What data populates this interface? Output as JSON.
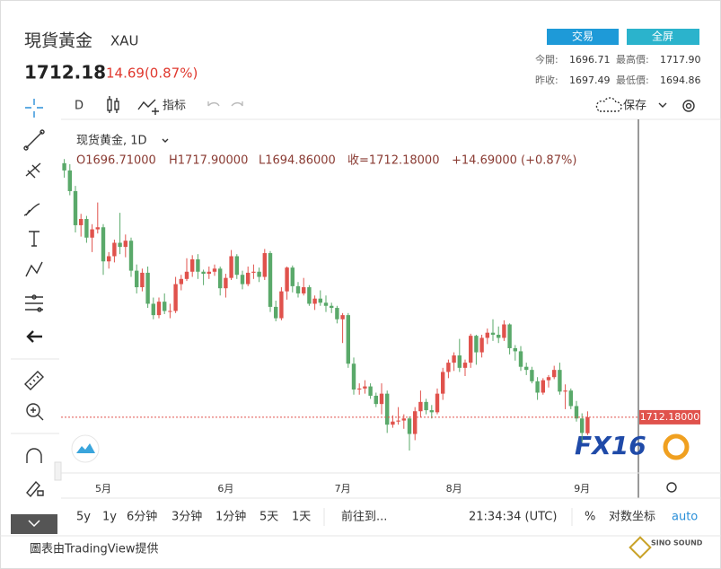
{
  "header": {
    "title": "現貨黃金",
    "symbol": "XAU",
    "price": "1712.18",
    "change": "14.69(0.87%)",
    "buttons": [
      "交易",
      "全屏"
    ],
    "stats": [
      {
        "label": "今開:",
        "value": "1696.71"
      },
      {
        "label": "最高價:",
        "value": "1717.90"
      },
      {
        "label": "昨收:",
        "value": "1697.49"
      },
      {
        "label": "最低價:",
        "value": "1694.86"
      }
    ]
  },
  "toolbar": {
    "interval": "D",
    "indicators": "指标",
    "save": "保存"
  },
  "legend": {
    "name": "现货黄金, 1D",
    "open": "O1696.71000",
    "high": "H1717.90000",
    "low": "L1694.86000",
    "close": "收=1712.18000",
    "change": "+14.69000 (+0.87%)"
  },
  "chart_data": {
    "type": "candlestick",
    "up_color": "#e0524c",
    "down_color": "#5aa96a",
    "ylim": [
      1660,
      1990
    ],
    "last_price_label": "1712.18000",
    "categories": [
      null,
      null,
      null,
      null,
      null,
      null,
      null,
      "5月",
      null,
      null,
      null,
      null,
      null,
      null,
      null,
      null,
      null,
      null,
      null,
      null,
      null,
      null,
      null,
      null,
      null,
      null,
      null,
      null,
      null,
      "6月",
      null,
      null,
      null,
      null,
      null,
      null,
      null,
      null,
      null,
      null,
      null,
      null,
      null,
      null,
      null,
      null,
      null,
      null,
      null,
      null,
      "7月",
      null,
      null,
      null,
      null,
      null,
      null,
      null,
      null,
      null,
      null,
      null,
      null,
      null,
      null,
      null,
      null,
      null,
      null,
      null,
      "8月",
      null,
      null,
      null,
      null,
      null,
      null,
      null,
      null,
      null,
      null,
      null,
      null,
      null,
      null,
      null,
      null,
      null,
      null,
      null,
      null,
      null,
      null,
      "9月",
      null
    ],
    "candles": [
      [
        1958,
        1962,
        1944,
        1951
      ],
      [
        1951,
        1957,
        1927,
        1931
      ],
      [
        1931,
        1936,
        1891,
        1898
      ],
      [
        1898,
        1909,
        1887,
        1904
      ],
      [
        1904,
        1907,
        1881,
        1886
      ],
      [
        1886,
        1899,
        1872,
        1894
      ],
      [
        1894,
        1920,
        1890,
        1896
      ],
      [
        1896,
        1899,
        1850,
        1863
      ],
      [
        1863,
        1872,
        1856,
        1868
      ],
      [
        1868,
        1884,
        1862,
        1881
      ],
      [
        1881,
        1910,
        1870,
        1877
      ],
      [
        1877,
        1889,
        1867,
        1883
      ],
      [
        1883,
        1886,
        1848,
        1854
      ],
      [
        1854,
        1860,
        1832,
        1838
      ],
      [
        1838,
        1856,
        1834,
        1852
      ],
      [
        1852,
        1858,
        1818,
        1822
      ],
      [
        1822,
        1828,
        1807,
        1811
      ],
      [
        1811,
        1828,
        1808,
        1824
      ],
      [
        1824,
        1832,
        1812,
        1815
      ],
      [
        1815,
        1822,
        1808,
        1815
      ],
      [
        1815,
        1848,
        1813,
        1841
      ],
      [
        1841,
        1850,
        1835,
        1846
      ],
      [
        1846,
        1866,
        1844,
        1853
      ],
      [
        1853,
        1869,
        1848,
        1865
      ],
      [
        1865,
        1870,
        1846,
        1853
      ],
      [
        1853,
        1855,
        1840,
        1851
      ],
      [
        1851,
        1858,
        1846,
        1853
      ],
      [
        1853,
        1860,
        1849,
        1856
      ],
      [
        1856,
        1858,
        1830,
        1837
      ],
      [
        1837,
        1851,
        1828,
        1847
      ],
      [
        1847,
        1874,
        1845,
        1868
      ],
      [
        1868,
        1870,
        1846,
        1850
      ],
      [
        1850,
        1854,
        1836,
        1841
      ],
      [
        1841,
        1858,
        1839,
        1852
      ],
      [
        1852,
        1860,
        1846,
        1853
      ],
      [
        1853,
        1857,
        1843,
        1848
      ],
      [
        1848,
        1875,
        1845,
        1871
      ],
      [
        1871,
        1873,
        1814,
        1819
      ],
      [
        1819,
        1825,
        1805,
        1808
      ],
      [
        1808,
        1838,
        1806,
        1834
      ],
      [
        1834,
        1858,
        1826,
        1857
      ],
      [
        1857,
        1859,
        1833,
        1839
      ],
      [
        1839,
        1843,
        1828,
        1832
      ],
      [
        1832,
        1847,
        1830,
        1838
      ],
      [
        1838,
        1840,
        1820,
        1822
      ],
      [
        1822,
        1830,
        1816,
        1827
      ],
      [
        1827,
        1835,
        1820,
        1823
      ],
      [
        1823,
        1830,
        1814,
        1820
      ],
      [
        1820,
        1823,
        1813,
        1818
      ],
      [
        1818,
        1820,
        1803,
        1807
      ],
      [
        1807,
        1813,
        1784,
        1811
      ],
      [
        1811,
        1813,
        1760,
        1764
      ],
      [
        1764,
        1770,
        1734,
        1739
      ],
      [
        1739,
        1745,
        1734,
        1740
      ],
      [
        1740,
        1748,
        1735,
        1742
      ],
      [
        1742,
        1745,
        1730,
        1733
      ],
      [
        1733,
        1736,
        1722,
        1725
      ],
      [
        1725,
        1745,
        1715,
        1735
      ],
      [
        1735,
        1738,
        1697,
        1705
      ],
      [
        1705,
        1714,
        1702,
        1708
      ],
      [
        1708,
        1722,
        1705,
        1709
      ],
      [
        1709,
        1715,
        1701,
        1711
      ],
      [
        1711,
        1713,
        1680,
        1696
      ],
      [
        1696,
        1722,
        1690,
        1718
      ],
      [
        1718,
        1738,
        1712,
        1727
      ],
      [
        1727,
        1730,
        1715,
        1719
      ],
      [
        1719,
        1724,
        1711,
        1717
      ],
      [
        1717,
        1740,
        1715,
        1735
      ],
      [
        1735,
        1760,
        1729,
        1756
      ],
      [
        1756,
        1768,
        1750,
        1765
      ],
      [
        1765,
        1775,
        1757,
        1772
      ],
      [
        1772,
        1788,
        1756,
        1760
      ],
      [
        1760,
        1768,
        1752,
        1765
      ],
      [
        1765,
        1793,
        1760,
        1791
      ],
      [
        1791,
        1792,
        1763,
        1775
      ],
      [
        1775,
        1792,
        1770,
        1789
      ],
      [
        1789,
        1798,
        1783,
        1794
      ],
      [
        1794,
        1807,
        1786,
        1792
      ],
      [
        1792,
        1800,
        1784,
        1789
      ],
      [
        1789,
        1806,
        1786,
        1802
      ],
      [
        1802,
        1803,
        1773,
        1779
      ],
      [
        1779,
        1782,
        1767,
        1776
      ],
      [
        1776,
        1781,
        1757,
        1761
      ],
      [
        1761,
        1765,
        1753,
        1758
      ],
      [
        1758,
        1761,
        1745,
        1747
      ],
      [
        1747,
        1751,
        1729,
        1736
      ],
      [
        1736,
        1750,
        1734,
        1748
      ],
      [
        1748,
        1753,
        1741,
        1751
      ],
      [
        1751,
        1762,
        1749,
        1758
      ],
      [
        1758,
        1765,
        1734,
        1737
      ],
      [
        1737,
        1744,
        1720,
        1738
      ],
      [
        1738,
        1740,
        1720,
        1723
      ],
      [
        1723,
        1728,
        1708,
        1711
      ],
      [
        1711,
        1716,
        1688,
        1697
      ],
      [
        1696.71,
        1717.9,
        1694.86,
        1712.18
      ]
    ]
  },
  "bottom_bar": {
    "ranges": [
      "5y",
      "1y",
      "6分钟",
      "3分钟",
      "1分钟",
      "5天",
      "1天"
    ],
    "goto": "前往到...",
    "time": "21:34:34 (UTC)",
    "percent": "%",
    "log": "对数坐标",
    "auto": "auto"
  },
  "footer": "圖表由TradingView提供"
}
